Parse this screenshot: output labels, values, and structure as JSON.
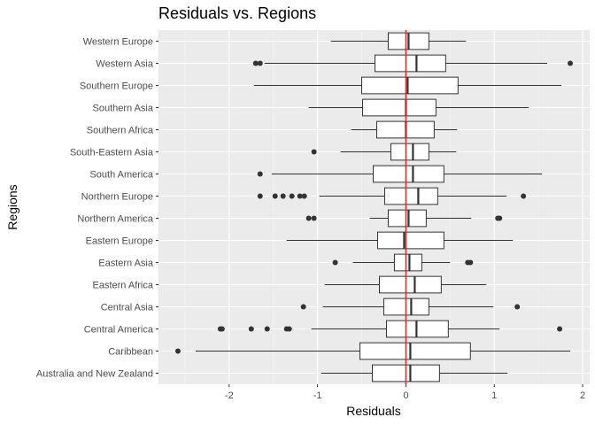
{
  "chart_data": {
    "type": "boxplot",
    "title": "Residuals vs. Regions",
    "xlabel": "Residuals",
    "ylabel": "Regions",
    "xlim": [
      -2.8,
      2.08
    ],
    "x_ticks": [
      -2,
      -1,
      0,
      1,
      2
    ],
    "x_tick_labels": [
      "-2",
      "-1",
      "0",
      "1",
      "2"
    ],
    "reference_line": {
      "x": 0,
      "color": "#cc0000"
    },
    "grid": true,
    "colors": {
      "panel": "#ebebeb",
      "grid_major": "#ffffff",
      "grid_minor": "#f4f4f4",
      "box_fill": "#ffffff",
      "box_line": "#333333",
      "outlier": "#333333",
      "reference_line": "#d62728"
    },
    "categories": [
      {
        "name": "Western Europe",
        "lower_whisker": -0.85,
        "q1": -0.2,
        "median": 0.03,
        "q3": 0.26,
        "upper_whisker": 0.68,
        "outliers": []
      },
      {
        "name": "Western Asia",
        "lower_whisker": -1.6,
        "q1": -0.35,
        "median": 0.12,
        "q3": 0.45,
        "upper_whisker": 1.6,
        "outliers": [
          -1.7,
          -1.65,
          1.86
        ]
      },
      {
        "name": "Southern Europe",
        "lower_whisker": -1.72,
        "q1": -0.5,
        "median": 0.02,
        "q3": 0.59,
        "upper_whisker": 1.76,
        "outliers": []
      },
      {
        "name": "Southern Asia",
        "lower_whisker": -1.1,
        "q1": -0.49,
        "median": 0.0,
        "q3": 0.34,
        "upper_whisker": 1.39,
        "outliers": []
      },
      {
        "name": "Southern Africa",
        "lower_whisker": -0.62,
        "q1": -0.33,
        "median": 0.0,
        "q3": 0.32,
        "upper_whisker": 0.58,
        "outliers": []
      },
      {
        "name": "South-Eastern Asia",
        "lower_whisker": -0.74,
        "q1": -0.17,
        "median": 0.08,
        "q3": 0.26,
        "upper_whisker": 0.57,
        "outliers": [
          -1.04
        ]
      },
      {
        "name": "South America",
        "lower_whisker": -1.52,
        "q1": -0.37,
        "median": 0.08,
        "q3": 0.43,
        "upper_whisker": 1.54,
        "outliers": [
          -1.65
        ]
      },
      {
        "name": "Northern Europe",
        "lower_whisker": -0.98,
        "q1": -0.24,
        "median": 0.14,
        "q3": 0.36,
        "upper_whisker": 1.14,
        "outliers": [
          -1.65,
          -1.48,
          -1.39,
          -1.29,
          -1.2,
          -1.15,
          1.33
        ]
      },
      {
        "name": "Northern America",
        "lower_whisker": -0.41,
        "q1": -0.2,
        "median": 0.03,
        "q3": 0.23,
        "upper_whisker": 0.74,
        "outliers": [
          -1.1,
          -1.04,
          1.04,
          1.06
        ]
      },
      {
        "name": "Eastern Europe",
        "lower_whisker": -1.35,
        "q1": -0.32,
        "median": -0.02,
        "q3": 0.43,
        "upper_whisker": 1.21,
        "outliers": []
      },
      {
        "name": "Eastern Asia",
        "lower_whisker": -0.6,
        "q1": -0.13,
        "median": 0.04,
        "q3": 0.18,
        "upper_whisker": 0.5,
        "outliers": [
          -0.8,
          0.7,
          0.73
        ]
      },
      {
        "name": "Eastern Africa",
        "lower_whisker": -0.92,
        "q1": -0.3,
        "median": 0.1,
        "q3": 0.4,
        "upper_whisker": 0.91,
        "outliers": []
      },
      {
        "name": "Central Asia",
        "lower_whisker": -0.94,
        "q1": -0.25,
        "median": 0.06,
        "q3": 0.26,
        "upper_whisker": 0.99,
        "outliers": [
          -1.16,
          1.26
        ]
      },
      {
        "name": "Central America",
        "lower_whisker": -1.07,
        "q1": -0.22,
        "median": 0.12,
        "q3": 0.48,
        "upper_whisker": 1.06,
        "outliers": [
          -2.1,
          -2.08,
          -1.75,
          -1.57,
          -1.35,
          -1.32,
          1.74
        ]
      },
      {
        "name": "Caribbean",
        "lower_whisker": -2.38,
        "q1": -0.52,
        "median": 0.05,
        "q3": 0.73,
        "upper_whisker": 1.86,
        "outliers": [
          -2.58
        ]
      },
      {
        "name": "Australia and New Zealand",
        "lower_whisker": -0.96,
        "q1": -0.38,
        "median": 0.05,
        "q3": 0.38,
        "upper_whisker": 1.15,
        "outliers": []
      }
    ]
  }
}
